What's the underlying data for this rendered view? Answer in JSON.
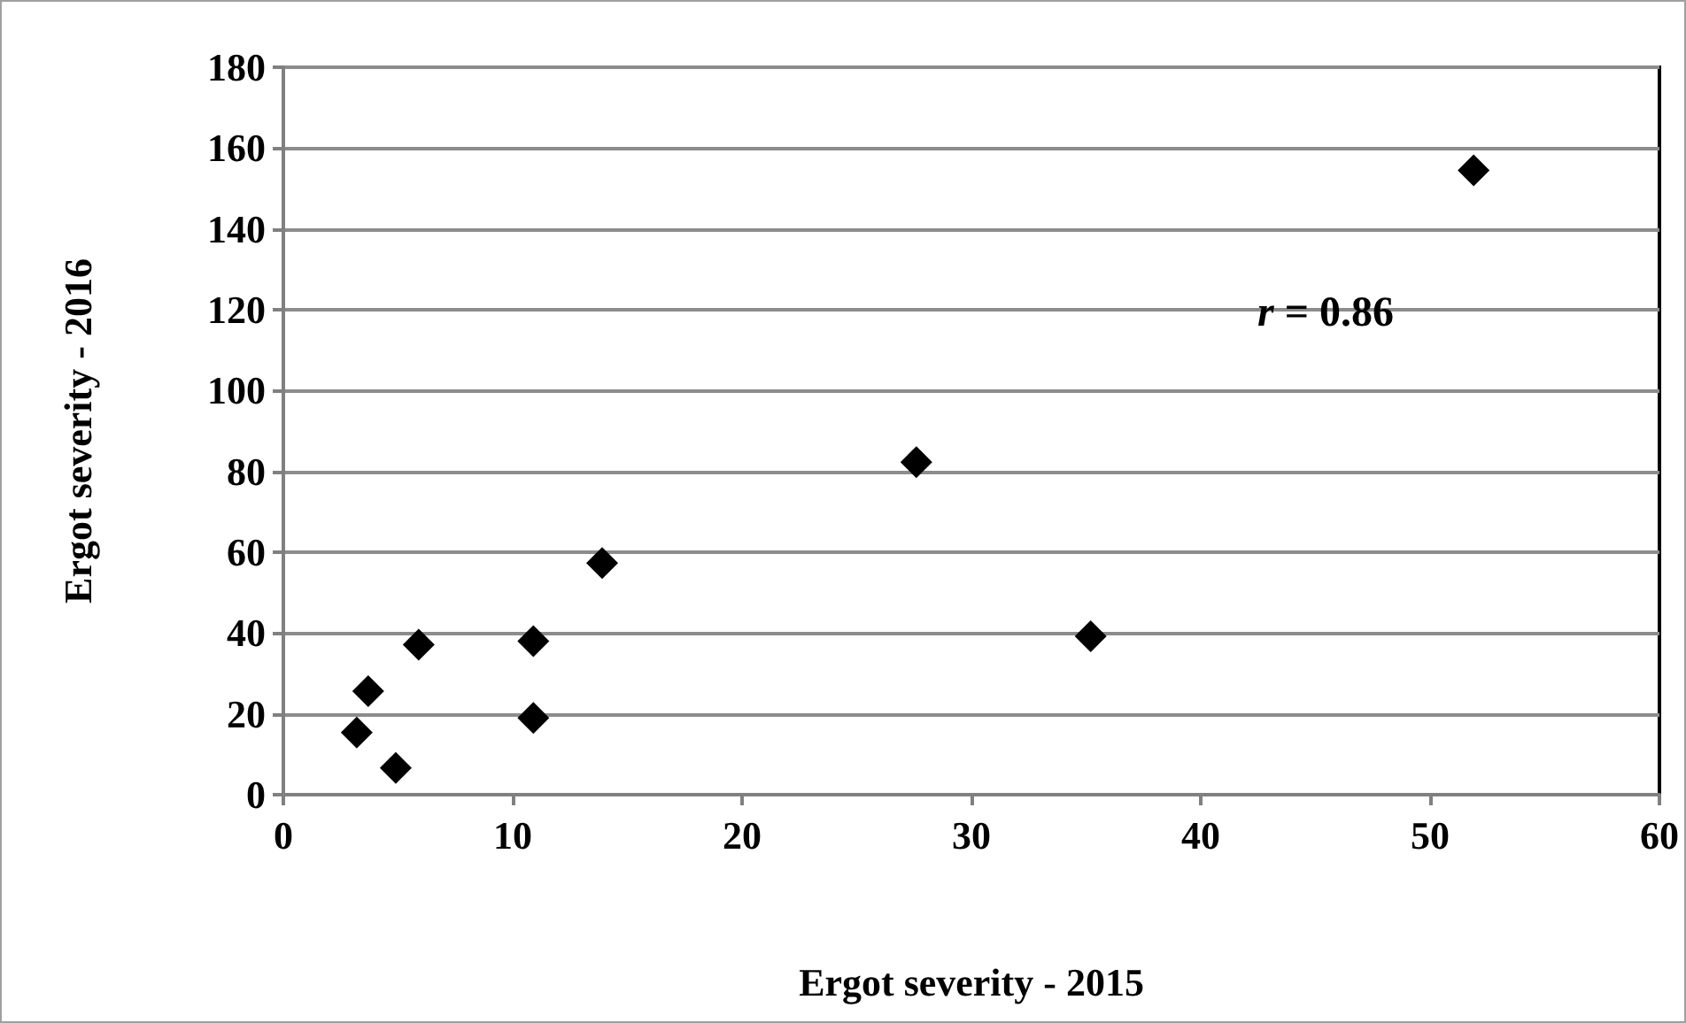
{
  "chart_data": {
    "type": "scatter",
    "xlabel": "Ergot severity - 2015",
    "ylabel": "Ergot severity - 2016",
    "x": [
      3.2,
      3.7,
      4.9,
      5.9,
      10.9,
      10.9,
      13.9,
      27.6,
      35.2,
      51.9
    ],
    "series": [
      {
        "color": "#000000",
        "values": [
          15.4,
          25.6,
          6.6,
          37.1,
          38.0,
          19.0,
          57.3,
          82.3,
          39.2,
          154.5
        ]
      }
    ],
    "xlim": [
      0,
      60
    ],
    "xticks": [
      0,
      10,
      20,
      30,
      40,
      50,
      60
    ],
    "ylim": [
      0,
      180
    ],
    "yticks": [
      0,
      20,
      40,
      60,
      80,
      100,
      120,
      140,
      160,
      180
    ],
    "grid": "y",
    "marker": "diamond",
    "annotations": [
      "r = 0.86"
    ]
  }
}
